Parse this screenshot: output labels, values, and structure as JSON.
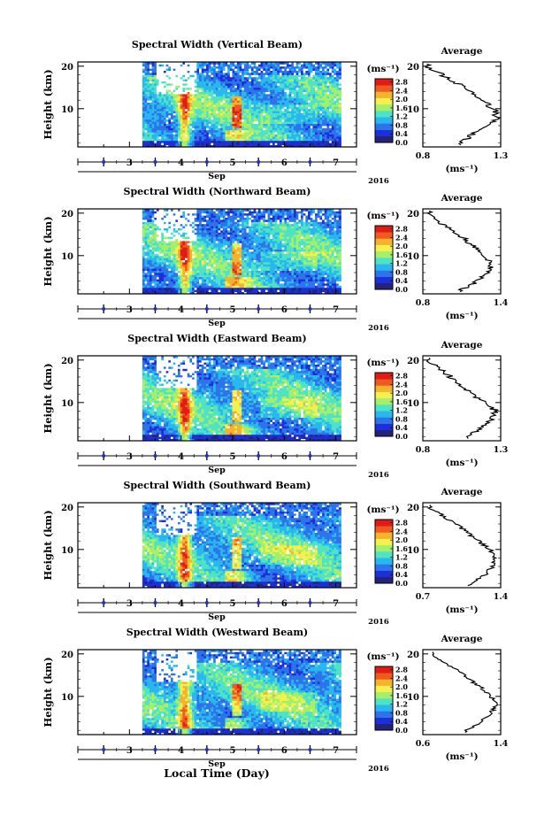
{
  "figure": {
    "year": "2016",
    "month_label": "Sep",
    "xlabel": "Local Time (Day)",
    "ylabel": "Height (km)",
    "colorbar_units": "(ms⁻¹)",
    "average_title": "Average",
    "average_units": "(ms⁻¹)",
    "day_ticks": [
      "3",
      "4",
      "5",
      "6",
      "7"
    ],
    "height_ticks": [
      "10",
      "20"
    ],
    "colorbar_ticks": [
      "0.0",
      "0.4",
      "0.8",
      "1.2",
      "1.6",
      "2.0",
      "2.4",
      "2.8"
    ]
  },
  "colors": {
    "scale": [
      "#23237a",
      "#1c2fd8",
      "#2d74ea",
      "#29b7ef",
      "#4fe3c6",
      "#a5ef6a",
      "#f3f050",
      "#f5b22c",
      "#ee5a20",
      "#e01c16"
    ]
  },
  "chart_data": [
    {
      "type": "heatmap",
      "title": "Spectral Width (Vertical Beam)",
      "ylabel": "Height (km)",
      "xlabel": "Sep",
      "xlim": [
        2.0,
        7.4
      ],
      "ylim": [
        1,
        21
      ],
      "zlim": [
        0.0,
        2.8
      ],
      "x_ticks": [
        3,
        4,
        5,
        6,
        7
      ],
      "y_ticks": [
        10,
        20
      ],
      "data_start_day": 3.25,
      "average_profile": {
        "xlabel": "(ms⁻¹)",
        "xlim": [
          0.8,
          1.3
        ],
        "x_tick_labels": [
          "0.8",
          "1.3"
        ],
        "height": [
          2,
          4,
          6,
          8,
          10,
          12,
          14,
          16,
          18,
          20
        ],
        "value": [
          1.05,
          1.12,
          1.22,
          1.28,
          1.25,
          1.18,
          1.1,
          1.02,
          0.92,
          0.83
        ]
      }
    },
    {
      "type": "heatmap",
      "title": "Spectral Width (Northward Beam)",
      "ylabel": "Height (km)",
      "xlabel": "Sep",
      "xlim": [
        2.0,
        7.4
      ],
      "ylim": [
        1,
        21
      ],
      "zlim": [
        0.0,
        2.8
      ],
      "x_ticks": [
        3,
        4,
        5,
        6,
        7
      ],
      "y_ticks": [
        10,
        20
      ],
      "data_start_day": 3.25,
      "average_profile": {
        "xlabel": "(ms⁻¹)",
        "xlim": [
          0.8,
          1.4
        ],
        "x_tick_labels": [
          "0.8",
          "1.4"
        ],
        "height": [
          2,
          4,
          6,
          8,
          10,
          12,
          14,
          16,
          18,
          20
        ],
        "value": [
          1.1,
          1.22,
          1.3,
          1.33,
          1.28,
          1.2,
          1.12,
          1.02,
          0.92,
          0.85
        ]
      }
    },
    {
      "type": "heatmap",
      "title": "Spectral Width (Eastward Beam)",
      "ylabel": "Height (km)",
      "xlabel": "Sep",
      "xlim": [
        2.0,
        7.4
      ],
      "ylim": [
        1,
        21
      ],
      "zlim": [
        0.0,
        2.8
      ],
      "x_ticks": [
        3,
        4,
        5,
        6,
        7
      ],
      "y_ticks": [
        10,
        20
      ],
      "data_start_day": 3.25,
      "average_profile": {
        "xlabel": "(ms⁻¹)",
        "xlim": [
          0.8,
          1.3
        ],
        "x_tick_labels": [
          "0.8",
          "1.3"
        ],
        "height": [
          2,
          4,
          6,
          8,
          10,
          12,
          14,
          16,
          18,
          20
        ],
        "value": [
          1.08,
          1.18,
          1.25,
          1.27,
          1.2,
          1.12,
          1.05,
          0.98,
          0.9,
          0.82
        ]
      }
    },
    {
      "type": "heatmap",
      "title": "Spectral Width (Southward Beam)",
      "ylabel": "Height (km)",
      "xlabel": "Sep",
      "xlim": [
        2.0,
        7.4
      ],
      "ylim": [
        1,
        21
      ],
      "zlim": [
        0.0,
        2.8
      ],
      "x_ticks": [
        3,
        4,
        5,
        6,
        7
      ],
      "y_ticks": [
        10,
        20
      ],
      "data_start_day": 3.25,
      "average_profile": {
        "xlabel": "(ms⁻¹)",
        "xlim": [
          0.7,
          1.4
        ],
        "x_tick_labels": [
          "0.7",
          "1.4"
        ],
        "height": [
          2,
          4,
          6,
          8,
          10,
          12,
          14,
          16,
          18,
          20
        ],
        "value": [
          1.12,
          1.25,
          1.33,
          1.36,
          1.3,
          1.2,
          1.1,
          1.0,
          0.88,
          0.76
        ]
      }
    },
    {
      "type": "heatmap",
      "title": "Spectral Width (Westward Beam)",
      "ylabel": "Height (km)",
      "xlabel": "Sep",
      "xlim": [
        2.0,
        7.4
      ],
      "ylim": [
        1,
        21
      ],
      "zlim": [
        0.0,
        2.8
      ],
      "x_ticks": [
        3,
        4,
        5,
        6,
        7
      ],
      "y_ticks": [
        10,
        20
      ],
      "data_start_day": 3.25,
      "average_profile": {
        "xlabel": "(ms⁻¹)",
        "xlim": [
          0.6,
          1.4
        ],
        "x_tick_labels": [
          "0.6",
          "1.4"
        ],
        "height": [
          2,
          4,
          6,
          8,
          10,
          12,
          14,
          16,
          18,
          20
        ],
        "value": [
          1.05,
          1.2,
          1.3,
          1.35,
          1.3,
          1.2,
          1.08,
          0.96,
          0.82,
          0.7
        ]
      }
    }
  ]
}
